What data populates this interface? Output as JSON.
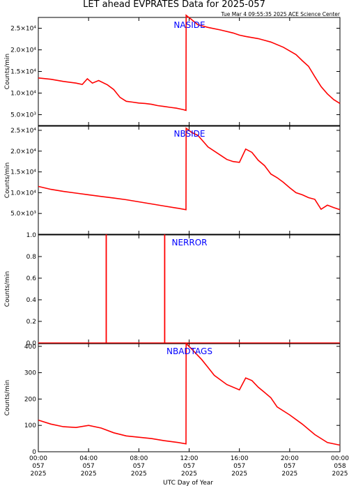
{
  "header": {
    "title": "LET ahead EVPRATES Data for 2025-057",
    "timestamp": "Tue Mar  4 09:55:35 2025 ACE Science Center"
  },
  "colors": {
    "trace": "#ff0000",
    "label": "#0000ff",
    "axis": "#000000"
  },
  "chart_data": [
    {
      "type": "line",
      "label": "NASIDE",
      "ylabel": "Counts/min",
      "ylim": [
        2500,
        27500
      ],
      "yticks": [
        {
          "v": 5000,
          "label": "5.0×10³"
        },
        {
          "v": 10000,
          "label": "1.0×10⁴"
        },
        {
          "v": 15000,
          "label": "1.5×10⁴"
        },
        {
          "v": 20000,
          "label": "2.0×10⁴"
        },
        {
          "v": 25000,
          "label": "2.5×10⁴"
        }
      ],
      "points": [
        [
          0,
          13500
        ],
        [
          1,
          13200
        ],
        [
          2,
          12700
        ],
        [
          3,
          12300
        ],
        [
          3.5,
          12000
        ],
        [
          3.9,
          13300
        ],
        [
          4.3,
          12300
        ],
        [
          4.8,
          12900
        ],
        [
          5.5,
          11900
        ],
        [
          6,
          10800
        ],
        [
          6.5,
          9000
        ],
        [
          7,
          8100
        ],
        [
          7.5,
          7900
        ],
        [
          8,
          7700
        ],
        [
          8.5,
          7600
        ],
        [
          9,
          7400
        ],
        [
          9.5,
          7100
        ],
        [
          10,
          6900
        ],
        [
          10.5,
          6700
        ],
        [
          11,
          6500
        ],
        [
          11.5,
          6200
        ],
        [
          11.75,
          6000
        ],
        [
          11.76,
          28000
        ],
        [
          12.2,
          27000
        ],
        [
          12.7,
          25800
        ],
        [
          13.5,
          25200
        ],
        [
          14.5,
          24600
        ],
        [
          15.5,
          23900
        ],
        [
          16,
          23400
        ],
        [
          16.5,
          23100
        ],
        [
          17.5,
          22600
        ],
        [
          18.5,
          21800
        ],
        [
          19.5,
          20600
        ],
        [
          20.5,
          18900
        ],
        [
          21,
          17500
        ],
        [
          21.5,
          16200
        ],
        [
          22,
          13800
        ],
        [
          22.5,
          11500
        ],
        [
          23,
          9800
        ],
        [
          23.5,
          8500
        ],
        [
          24,
          7600
        ]
      ]
    },
    {
      "type": "line",
      "label": "NBSIDE",
      "ylabel": "Counts/min",
      "ylim": [
        0,
        26000
      ],
      "yticks": [
        {
          "v": 5000,
          "label": "5.0×10³"
        },
        {
          "v": 10000,
          "label": "1.0×10⁴"
        },
        {
          "v": 15000,
          "label": "1.5×10⁴"
        },
        {
          "v": 20000,
          "label": "2.0×10⁴"
        },
        {
          "v": 25000,
          "label": "2.5×10⁴"
        }
      ],
      "points": [
        [
          0,
          11500
        ],
        [
          1,
          10800
        ],
        [
          2,
          10300
        ],
        [
          3,
          9900
        ],
        [
          4,
          9500
        ],
        [
          5,
          9100
        ],
        [
          6,
          8700
        ],
        [
          7,
          8300
        ],
        [
          8,
          7800
        ],
        [
          9,
          7300
        ],
        [
          10,
          6800
        ],
        [
          11,
          6300
        ],
        [
          11.75,
          5900
        ],
        [
          11.76,
          25500
        ],
        [
          12.2,
          24500
        ],
        [
          12.7,
          23800
        ],
        [
          13.5,
          21000
        ],
        [
          14.5,
          19000
        ],
        [
          15,
          18000
        ],
        [
          15.5,
          17500
        ],
        [
          16,
          17300
        ],
        [
          16.5,
          20500
        ],
        [
          17,
          19700
        ],
        [
          17.5,
          17800
        ],
        [
          18,
          16500
        ],
        [
          18.5,
          14500
        ],
        [
          19,
          13600
        ],
        [
          19.5,
          12500
        ],
        [
          20,
          11200
        ],
        [
          20.5,
          10000
        ],
        [
          21,
          9500
        ],
        [
          21.5,
          8800
        ],
        [
          22,
          8400
        ],
        [
          22.5,
          6000
        ],
        [
          23,
          7000
        ],
        [
          23.5,
          6400
        ],
        [
          24,
          5900
        ]
      ]
    },
    {
      "type": "line",
      "label": "NERROR",
      "ylabel": "Counts/min",
      "ylim": [
        0,
        1
      ],
      "yticks": [
        {
          "v": 0,
          "label": "0.0"
        },
        {
          "v": 0.2,
          "label": "0.2"
        },
        {
          "v": 0.4,
          "label": "0.4"
        },
        {
          "v": 0.6,
          "label": "0.6"
        },
        {
          "v": 0.8,
          "label": "0.8"
        },
        {
          "v": 1.0,
          "label": "1.0"
        }
      ],
      "points": [
        [
          0,
          0
        ],
        [
          5.4,
          0
        ],
        [
          5.4,
          1
        ],
        [
          5.41,
          1
        ],
        [
          5.41,
          0
        ],
        [
          10.05,
          0
        ],
        [
          10.05,
          1
        ],
        [
          10.06,
          1
        ],
        [
          10.06,
          0
        ],
        [
          24,
          0
        ]
      ]
    },
    {
      "type": "line",
      "label": "NBADTAGS",
      "ylabel": "Counts/min",
      "ylim": [
        0,
        410
      ],
      "yticks": [
        {
          "v": 0,
          "label": "0"
        },
        {
          "v": 100,
          "label": "100"
        },
        {
          "v": 200,
          "label": "200"
        },
        {
          "v": 300,
          "label": "300"
        },
        {
          "v": 400,
          "label": "400"
        }
      ],
      "points": [
        [
          0,
          120
        ],
        [
          1,
          105
        ],
        [
          2,
          95
        ],
        [
          3,
          92
        ],
        [
          4,
          100
        ],
        [
          5,
          90
        ],
        [
          6,
          72
        ],
        [
          7,
          60
        ],
        [
          8,
          55
        ],
        [
          9,
          50
        ],
        [
          10,
          42
        ],
        [
          11,
          36
        ],
        [
          11.75,
          30
        ],
        [
          11.76,
          410
        ],
        [
          12.2,
          390
        ],
        [
          13,
          350
        ],
        [
          13.5,
          320
        ],
        [
          14,
          290
        ],
        [
          15,
          255
        ],
        [
          16,
          235
        ],
        [
          16.5,
          280
        ],
        [
          17,
          270
        ],
        [
          17.5,
          245
        ],
        [
          18,
          225
        ],
        [
          18.5,
          205
        ],
        [
          19,
          170
        ],
        [
          20,
          140
        ],
        [
          21,
          105
        ],
        [
          22,
          65
        ],
        [
          23,
          35
        ],
        [
          24,
          25
        ]
      ]
    }
  ],
  "x_axis": {
    "label": "UTC Day of Year",
    "range": [
      0,
      24
    ],
    "ticks": [
      {
        "v": 0,
        "time": "00:00",
        "doy": "057",
        "year": "2025"
      },
      {
        "v": 4,
        "time": "04:00",
        "doy": "057",
        "year": "2025"
      },
      {
        "v": 8,
        "time": "08:00",
        "doy": "057",
        "year": "2025"
      },
      {
        "v": 12,
        "time": "12:00",
        "doy": "057",
        "year": "2025"
      },
      {
        "v": 16,
        "time": "16:00",
        "doy": "057",
        "year": "2025"
      },
      {
        "v": 20,
        "time": "20:00",
        "doy": "057",
        "year": "2025"
      },
      {
        "v": 24,
        "time": "00:00",
        "doy": "058",
        "year": "2025"
      }
    ]
  }
}
